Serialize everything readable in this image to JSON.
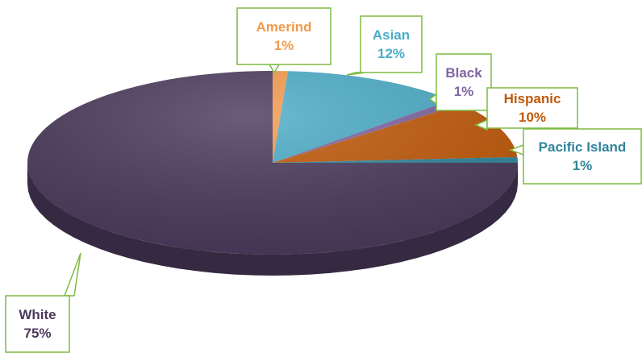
{
  "chart_data": {
    "type": "pie",
    "style": "3d",
    "title": "",
    "legend": "none",
    "slices": [
      {
        "label": "Amerind",
        "value": 1,
        "value_label": "1%",
        "color": "#f4994c"
      },
      {
        "label": "Asian",
        "value": 12,
        "value_label": "12%",
        "color": "#4bacc6"
      },
      {
        "label": "Black",
        "value": 1,
        "value_label": "1%",
        "color": "#8064a2"
      },
      {
        "label": "Hispanic",
        "value": 10,
        "value_label": "10%",
        "color": "#c0590a"
      },
      {
        "label": "Pacific Island",
        "value": 1,
        "value_label": "1%",
        "color": "#31859c"
      },
      {
        "label": "White",
        "value": 75,
        "value_label": "75%",
        "color": "#4b3a5c"
      }
    ],
    "label_border_color": "#7fba42"
  }
}
